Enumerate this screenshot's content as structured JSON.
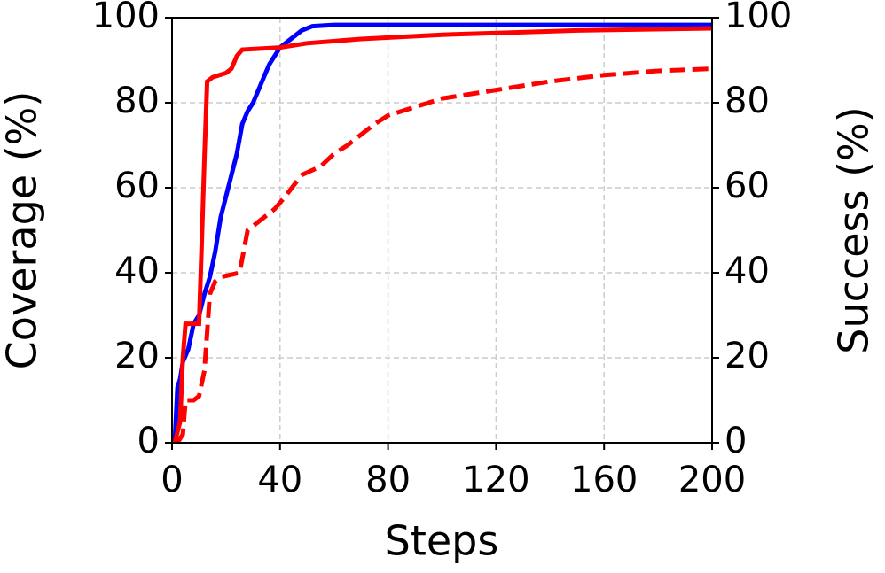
{
  "chart_data": {
    "type": "line",
    "xlabel": "Steps",
    "ylabel": "Coverage (%)",
    "y2label": "Success (%)",
    "xlim": [
      0,
      200
    ],
    "xticks": [
      0,
      40,
      80,
      120,
      160,
      200
    ],
    "ylim": [
      0,
      100
    ],
    "yticks": [
      0,
      20,
      40,
      60,
      80,
      100
    ],
    "y2lim": [
      0,
      100
    ],
    "y2ticks": [
      0,
      20,
      40,
      60,
      80,
      100
    ],
    "grid": true,
    "series": [
      {
        "color": "#0000ff",
        "linestyle": "solid",
        "axis": "y",
        "x": [
          1,
          2,
          3,
          4,
          6,
          8,
          10,
          12,
          14,
          16,
          18,
          20,
          22,
          24,
          26,
          28,
          30,
          32,
          34,
          36,
          38,
          40,
          44,
          48,
          52,
          60,
          200
        ],
        "values": [
          0,
          13,
          15,
          19,
          22,
          28,
          30,
          35,
          39,
          45,
          53,
          58,
          63,
          68,
          75,
          78,
          80,
          83,
          86,
          89,
          91,
          93,
          95,
          97,
          98,
          98.3,
          98.3
        ]
      },
      {
        "color": "#ff0000",
        "linestyle": "solid",
        "axis": "y2",
        "x": [
          1,
          3,
          4,
          5,
          10,
          11,
          12,
          13,
          15,
          20,
          22,
          24,
          26,
          40,
          50,
          70,
          100,
          150,
          200
        ],
        "values": [
          0,
          5,
          20,
          28,
          28,
          47,
          67,
          85,
          86,
          87,
          88,
          91,
          92.5,
          93,
          94,
          95,
          96,
          97,
          97.5
        ]
      },
      {
        "color": "#ff0000",
        "linestyle": "dashed",
        "axis": "y2",
        "x": [
          2,
          4,
          5,
          8,
          10,
          12,
          14,
          16,
          18,
          25,
          28,
          32,
          38,
          42,
          48,
          55,
          60,
          65,
          75,
          80,
          90,
          100,
          120,
          140,
          160,
          180,
          200
        ],
        "values": [
          0,
          2,
          10,
          10,
          11,
          17,
          35,
          38,
          39,
          40,
          50,
          52,
          55,
          58,
          63,
          65,
          68,
          70,
          75,
          77,
          79,
          81,
          83,
          85,
          86.5,
          87.5,
          88
        ]
      }
    ]
  }
}
